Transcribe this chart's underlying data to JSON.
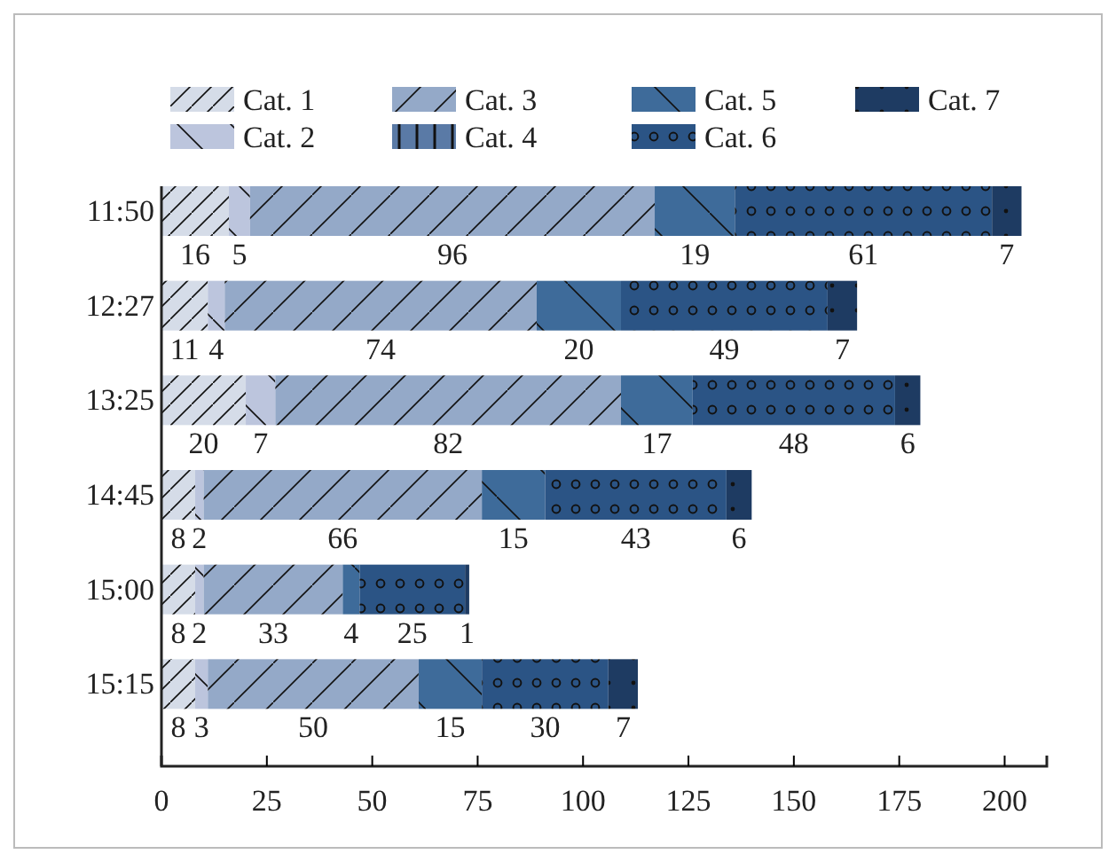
{
  "chart_data": {
    "type": "bar",
    "orientation": "horizontal",
    "stacked": true,
    "categories": [
      "11:50",
      "12:27",
      "13:25",
      "14:45",
      "15:00",
      "15:15"
    ],
    "series": [
      {
        "name": "Cat. 1",
        "color": "#d5dce8",
        "values": [
          16,
          11,
          20,
          8,
          8,
          8
        ],
        "value_labels": [
          "16",
          "11",
          "20",
          "8",
          "8",
          "8"
        ]
      },
      {
        "name": "Cat. 2",
        "color": "#bcc5dd",
        "values": [
          5,
          4,
          7,
          2,
          2,
          3
        ],
        "value_labels": [
          "5",
          "4",
          "7",
          "2",
          "2",
          "3"
        ]
      },
      {
        "name": "Cat. 3",
        "color": "#94a9c8",
        "values": [
          96,
          74,
          82,
          66,
          33,
          50
        ],
        "value_labels": [
          "96",
          "74",
          "82",
          "66",
          "33",
          "50"
        ]
      },
      {
        "name": "Cat. 4",
        "color": "#5a7aa6",
        "values": [
          0,
          0,
          0,
          0,
          0,
          0
        ],
        "value_labels": [
          null,
          null,
          null,
          null,
          null,
          null
        ]
      },
      {
        "name": "Cat. 5",
        "color": "#3e6b9a",
        "values": [
          19,
          20,
          17,
          15,
          4,
          15
        ],
        "value_labels": [
          "19",
          "20",
          "17",
          "15",
          "4",
          "15"
        ]
      },
      {
        "name": "Cat. 6",
        "color": "#2b5485",
        "values": [
          61,
          49,
          48,
          43,
          25,
          30
        ],
        "value_labels": [
          "61",
          "49",
          "48",
          "43",
          "25",
          "30"
        ]
      },
      {
        "name": "Cat. 7",
        "color": "#1e3b62",
        "values": [
          7,
          7,
          6,
          6,
          1,
          7
        ],
        "value_labels": [
          "7",
          "7",
          "6",
          "6",
          "1",
          "7"
        ]
      }
    ],
    "xlim": [
      0,
      210
    ],
    "xticks": [
      0,
      25,
      50,
      75,
      100,
      125,
      150,
      175,
      200
    ],
    "legend": "top",
    "grid": false
  }
}
